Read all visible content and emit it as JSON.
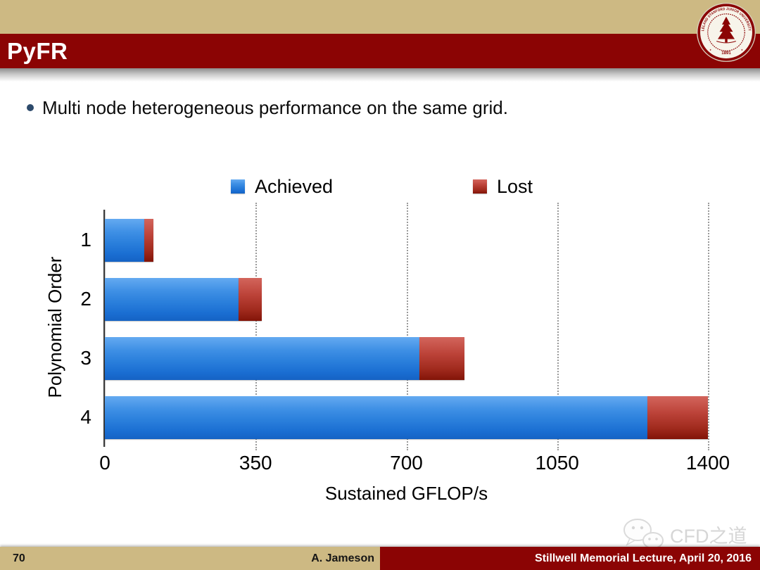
{
  "header": {
    "title": "PyFR"
  },
  "seal": {
    "ring_text": "LELAND STANFORD JUNIOR UNIVERSITY",
    "year": "1891"
  },
  "bullet": {
    "text": "Multi node heterogeneous performance on the same grid."
  },
  "watermark": {
    "text": "CFD之道"
  },
  "footer": {
    "page_number": "70",
    "author": "A. Jameson",
    "lecture": "Stillwell Memorial Lecture, April 20, 2016"
  },
  "colors": {
    "stanford_red": "#8B0404",
    "tan": "#CDB983",
    "bar_blue": "#2E82DC",
    "bar_red": "#B13A31",
    "gridline": "#9A9A9A"
  },
  "chart_data": {
    "type": "bar",
    "orientation": "horizontal",
    "stacked": true,
    "title": "",
    "categories": [
      "1",
      "2",
      "3",
      "4"
    ],
    "series": [
      {
        "name": "Achieved",
        "color": "#2E82DC",
        "values": [
          92,
          310,
          730,
          1260
        ]
      },
      {
        "name": "Lost",
        "color": "#B13A31",
        "values": [
          21,
          55,
          105,
          140
        ]
      }
    ],
    "totals": [
      113,
      365,
      835,
      1400
    ],
    "xlabel": "Sustained GFLOP/s",
    "ylabel": "Polynomial Order",
    "xlim": [
      0,
      1400
    ],
    "xticks": [
      0,
      350,
      700,
      1050,
      1400
    ],
    "grid": "vertical-dotted",
    "legend_position": "top"
  }
}
